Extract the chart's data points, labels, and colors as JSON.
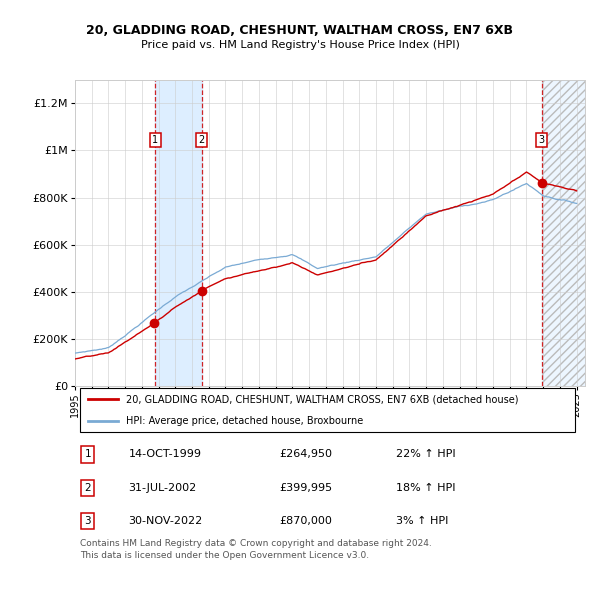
{
  "title_line1": "20, GLADDING ROAD, CHESHUNT, WALTHAM CROSS, EN7 6XB",
  "title_line2": "Price paid vs. HM Land Registry's House Price Index (HPI)",
  "ylim": [
    0,
    1300000
  ],
  "yticks": [
    0,
    200000,
    400000,
    600000,
    800000,
    1000000,
    1200000
  ],
  "ytick_labels": [
    "£0",
    "£200K",
    "£400K",
    "£600K",
    "£800K",
    "£1M",
    "£1.2M"
  ],
  "s1_year": 1999.79,
  "s1_price": 264950,
  "s2_year": 2002.58,
  "s2_price": 399995,
  "s3_year": 2022.92,
  "s3_price": 870000,
  "sale_labels": [
    "1",
    "2",
    "3"
  ],
  "sale_label_info": [
    {
      "num": "1",
      "date": "14-OCT-1999",
      "price": "£264,950",
      "hpi": "22% ↑ HPI"
    },
    {
      "num": "2",
      "date": "31-JUL-2002",
      "price": "£399,995",
      "hpi": "18% ↑ HPI"
    },
    {
      "num": "3",
      "date": "30-NOV-2022",
      "price": "£870,000",
      "hpi": "3% ↑ HPI"
    }
  ],
  "line_color_red": "#cc0000",
  "line_color_blue": "#7aaad4",
  "shade_color": "#ddeeff",
  "legend_label_red": "20, GLADDING ROAD, CHESHUNT, WALTHAM CROSS, EN7 6XB (detached house)",
  "legend_label_blue": "HPI: Average price, detached house, Broxbourne",
  "footnote": "Contains HM Land Registry data © Crown copyright and database right 2024.\nThis data is licensed under the Open Government Licence v3.0.",
  "background_color": "#ffffff",
  "grid_color": "#cccccc"
}
